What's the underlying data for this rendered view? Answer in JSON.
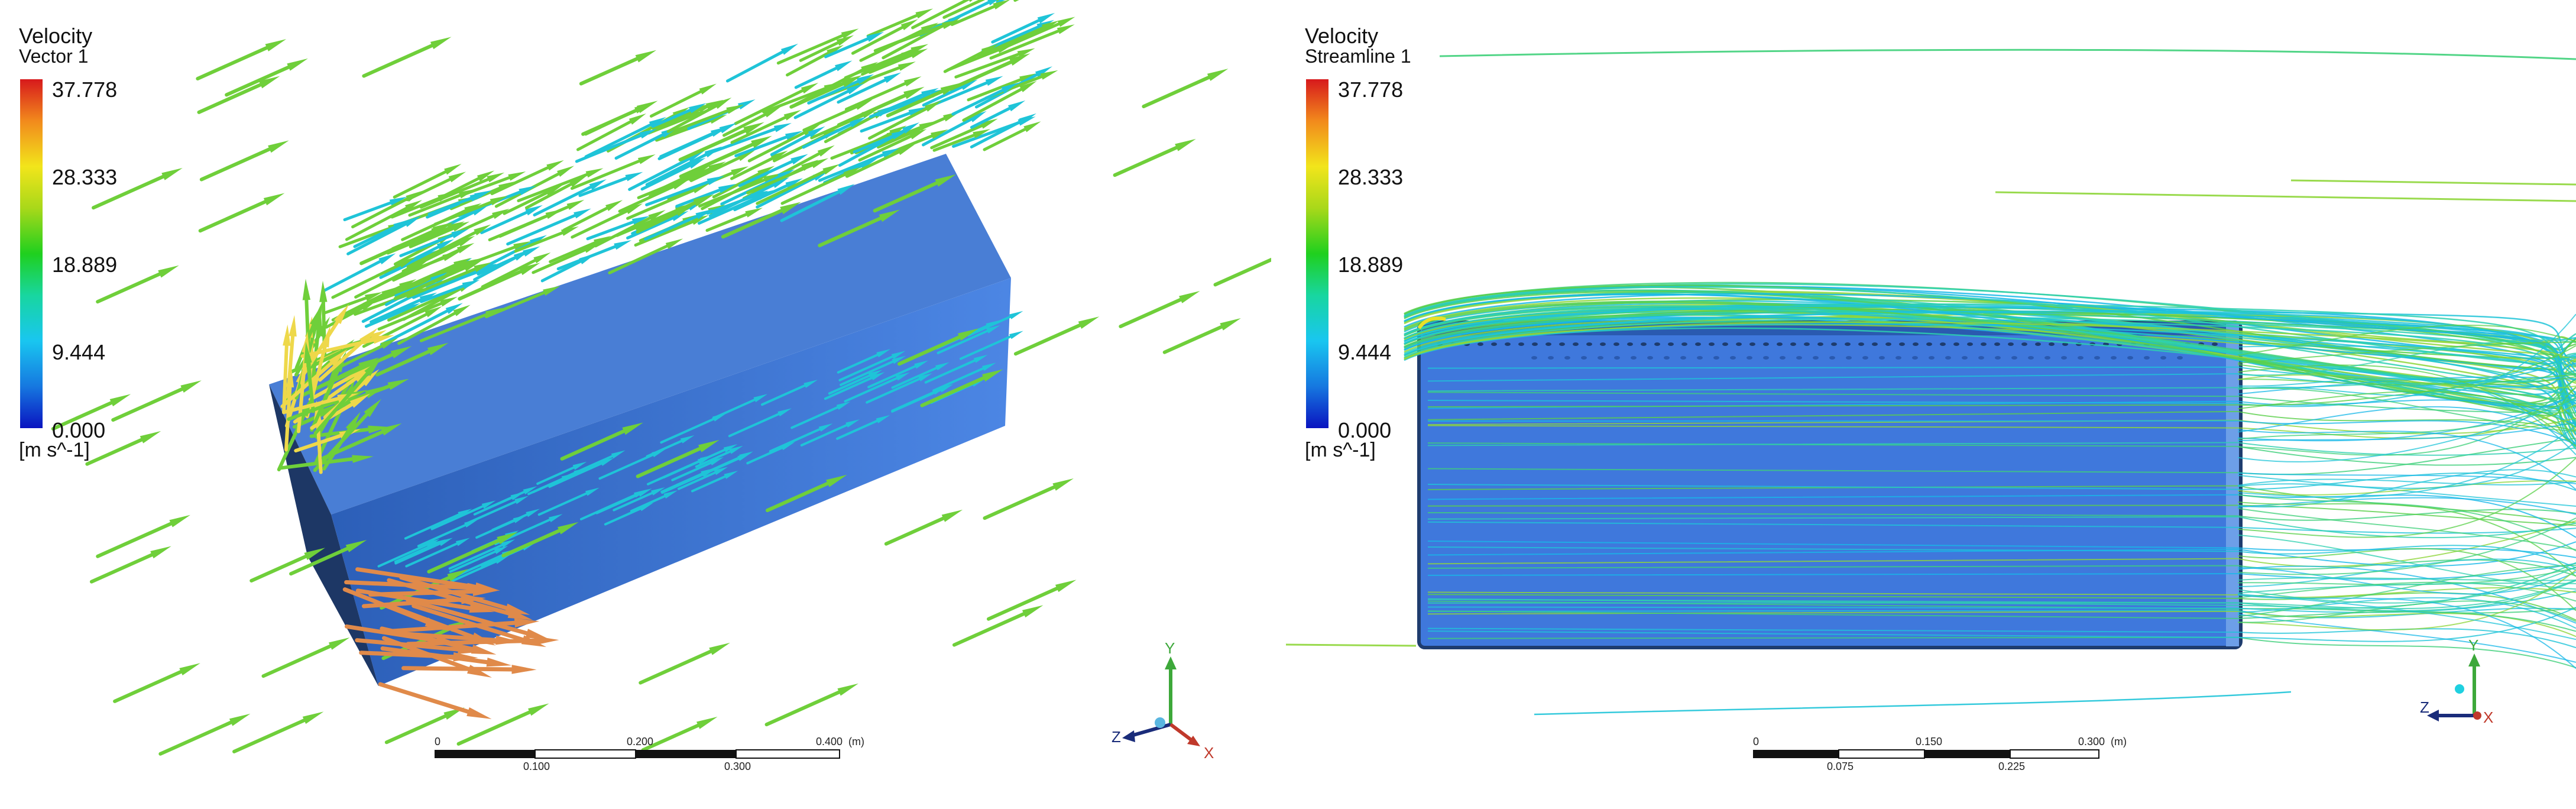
{
  "panels": [
    {
      "legend": {
        "variable": "Velocity",
        "object": "Vector 1",
        "ticks": [
          "37.778",
          "28.333",
          "18.889",
          "9.444",
          "0.000"
        ],
        "unit": "[m s^-1]"
      },
      "scale_bar": {
        "top_labels": [
          "0",
          "0.200",
          "0.400"
        ],
        "bottom_labels": [
          "0.100",
          "0.300"
        ],
        "unit": "(m)"
      },
      "triad": {
        "x": "X",
        "y": "Y",
        "z": "Z"
      }
    },
    {
      "legend": {
        "variable": "Velocity",
        "object": "Streamline 1",
        "ticks": [
          "37.778",
          "28.333",
          "18.889",
          "9.444",
          "0.000"
        ],
        "unit": "[m s^-1]"
      },
      "scale_bar": {
        "top_labels": [
          "0",
          "0.150",
          "0.300"
        ],
        "bottom_labels": [
          "0.075",
          "0.225"
        ],
        "unit": "(m)"
      },
      "triad": {
        "x": "X",
        "y": "Y",
        "z": "Z"
      }
    }
  ],
  "colors": {
    "body": "#3f78dc",
    "body_dark": "#1e3c6e",
    "vector_green": "#6fcf3a",
    "vector_cyan": "#1fc4d8",
    "vector_orange": "#e08a4a",
    "vector_yellow": "#eed84a"
  }
}
